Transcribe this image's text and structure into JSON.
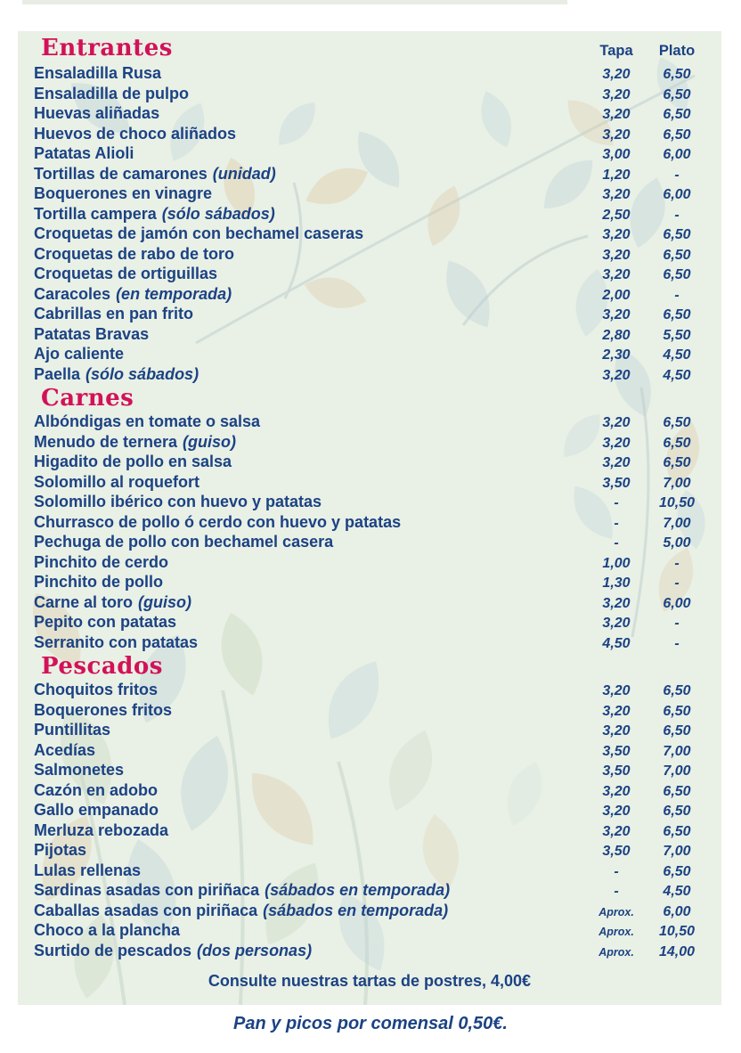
{
  "colors": {
    "navy": "#1b4284",
    "accent": "#d31158",
    "panel": "#e9f0e5",
    "page": "#ffffff"
  },
  "columns": {
    "tapa": "Tapa",
    "plato": "Plato"
  },
  "sections": [
    {
      "title": "Entrantes",
      "items": [
        {
          "name": "Ensaladilla Rusa",
          "note": "",
          "tapa": "3,20",
          "plato": "6,50"
        },
        {
          "name": "Ensaladilla de pulpo",
          "note": "",
          "tapa": "3,20",
          "plato": "6,50"
        },
        {
          "name": "Huevas aliñadas",
          "note": "",
          "tapa": "3,20",
          "plato": "6,50"
        },
        {
          "name": "Huevos de choco aliñados",
          "note": "",
          "tapa": "3,20",
          "plato": "6,50"
        },
        {
          "name": "Patatas Alioli",
          "note": "",
          "tapa": "3,00",
          "plato": "6,00"
        },
        {
          "name": "Tortillas de camarones",
          "note": "(unidad)",
          "tapa": "1,20",
          "plato": "-"
        },
        {
          "name": "Boquerones en vinagre",
          "note": "",
          "tapa": "3,20",
          "plato": "6,00"
        },
        {
          "name": "Tortilla campera",
          "note": "(sólo sábados)",
          "tapa": "2,50",
          "plato": "-"
        },
        {
          "name": "Croquetas de jamón con bechamel caseras",
          "note": "",
          "tapa": "3,20",
          "plato": "6,50"
        },
        {
          "name": "Croquetas de rabo de toro",
          "note": "",
          "tapa": "3,20",
          "plato": "6,50"
        },
        {
          "name": "Croquetas de ortiguillas",
          "note": "",
          "tapa": "3,20",
          "plato": "6,50"
        },
        {
          "name": "Caracoles",
          "note": "(en temporada)",
          "tapa": "2,00",
          "plato": "-"
        },
        {
          "name": "Cabrillas en pan frito",
          "note": "",
          "tapa": "3,20",
          "plato": "6,50"
        },
        {
          "name": "Patatas Bravas",
          "note": "",
          "tapa": "2,80",
          "plato": "5,50"
        },
        {
          "name": "Ajo caliente",
          "note": "",
          "tapa": "2,30",
          "plato": "4,50"
        },
        {
          "name": "Paella",
          "note": "(sólo sábados)",
          "tapa": "3,20",
          "plato": "4,50"
        }
      ]
    },
    {
      "title": "Carnes",
      "items": [
        {
          "name": "Albóndigas en tomate o salsa",
          "note": "",
          "tapa": "3,20",
          "plato": "6,50"
        },
        {
          "name": "Menudo de ternera",
          "note": "(guiso)",
          "tapa": "3,20",
          "plato": "6,50"
        },
        {
          "name": "Higadito de pollo en salsa",
          "note": "",
          "tapa": "3,20",
          "plato": "6,50"
        },
        {
          "name": "Solomillo al roquefort",
          "note": "",
          "tapa": "3,50",
          "plato": "7,00"
        },
        {
          "name": "Solomillo ibérico con huevo y patatas",
          "note": "",
          "tapa": "-",
          "plato": "10,50"
        },
        {
          "name": "Churrasco de pollo ó cerdo con huevo y patatas",
          "note": "",
          "tapa": "-",
          "plato": "7,00"
        },
        {
          "name": "Pechuga de pollo con bechamel casera",
          "note": "",
          "tapa": "-",
          "plato": "5,00"
        },
        {
          "name": "Pinchito de cerdo",
          "note": "",
          "tapa": "1,00",
          "plato": "-"
        },
        {
          "name": "Pinchito de pollo",
          "note": "",
          "tapa": "1,30",
          "plato": "-"
        },
        {
          "name": "Carne al toro",
          "note": "(guiso)",
          "tapa": "3,20",
          "plato": "6,00"
        },
        {
          "name": "Pepito con patatas",
          "note": "",
          "tapa": "3,20",
          "plato": "-"
        },
        {
          "name": "Serranito con patatas",
          "note": "",
          "tapa": "4,50",
          "plato": "-"
        }
      ]
    },
    {
      "title": "Pescados",
      "items": [
        {
          "name": "Choquitos fritos",
          "note": "",
          "tapa": "3,20",
          "plato": "6,50"
        },
        {
          "name": "Boquerones fritos",
          "note": "",
          "tapa": "3,20",
          "plato": "6,50"
        },
        {
          "name": "Puntillitas",
          "note": "",
          "tapa": "3,20",
          "plato": "6,50"
        },
        {
          "name": "Acedías",
          "note": "",
          "tapa": "3,50",
          "plato": "7,00"
        },
        {
          "name": "Salmonetes",
          "note": "",
          "tapa": "3,50",
          "plato": "7,00"
        },
        {
          "name": "Cazón en adobo",
          "note": "",
          "tapa": "3,20",
          "plato": "6,50"
        },
        {
          "name": "Gallo empanado",
          "note": "",
          "tapa": "3,20",
          "plato": "6,50"
        },
        {
          "name": "Merluza rebozada",
          "note": "",
          "tapa": "3,20",
          "plato": "6,50"
        },
        {
          "name": "Pijotas",
          "note": "",
          "tapa": "3,50",
          "plato": "7,00"
        },
        {
          "name": "Lulas rellenas",
          "note": "",
          "tapa": "-",
          "plato": "6,50"
        },
        {
          "name": "Sardinas asadas con piriñaca",
          "note": "(sábados en temporada)",
          "tapa": "-",
          "plato": "4,50"
        },
        {
          "name": "Caballas asadas con piriñaca",
          "note": "(sábados en temporada)",
          "tapa": "Aprox.",
          "plato": "6,00"
        },
        {
          "name": "Choco a la plancha",
          "note": "",
          "tapa": "Aprox.",
          "plato": "10,50"
        },
        {
          "name": "Surtido de pescados",
          "note": "(dos personas)",
          "tapa": "Aprox.",
          "plato": "14,00"
        }
      ]
    }
  ],
  "footer": {
    "desserts_line": "Consulte nuestras tartas de postres, 4,00€",
    "bread_line": "Pan y picos por comensal 0,50€."
  }
}
